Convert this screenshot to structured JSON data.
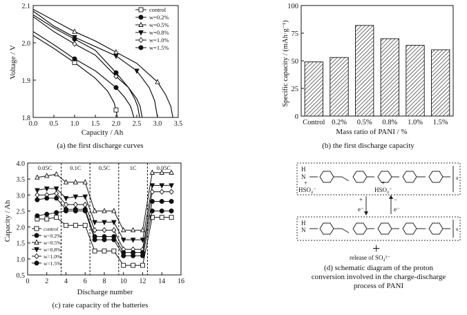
{
  "panel_a": {
    "caption": "(a) the first discharge curves",
    "chart_data": {
      "type": "line",
      "xlabel": "Capacity / Ah",
      "ylabel": "Voltage / V",
      "xlim": [
        0.0,
        3.5
      ],
      "ylim": [
        1.8,
        2.1
      ],
      "xticks": [
        "0.0",
        "0.5",
        "1.0",
        "1.5",
        "2.0",
        "2.5",
        "3.0",
        "3.5"
      ],
      "yticks": [
        "1.8",
        "1.9",
        "2.0",
        "2.1"
      ],
      "legend_position": "top-right",
      "series": [
        {
          "name": "control",
          "marker": "square",
          "x": [
            0,
            0.5,
            1.0,
            1.5,
            1.8,
            1.95,
            2.0,
            2.03
          ],
          "y": [
            2.02,
            1.985,
            1.947,
            1.905,
            1.87,
            1.84,
            1.82,
            1.8
          ]
        },
        {
          "name": "w=0.2%",
          "marker": "circle",
          "x": [
            0,
            0.5,
            1.0,
            1.5,
            2.0,
            2.2,
            2.35,
            2.43
          ],
          "y": [
            2.03,
            1.995,
            1.957,
            1.925,
            1.88,
            1.855,
            1.83,
            1.8
          ]
        },
        {
          "name": "w=0.5%",
          "marker": "triangle-up",
          "x": [
            0,
            0.5,
            1.0,
            1.5,
            2.0,
            2.5,
            3.0,
            3.2,
            3.32,
            3.37
          ],
          "y": [
            2.09,
            2.06,
            2.03,
            2.005,
            1.975,
            1.945,
            1.895,
            1.86,
            1.83,
            1.8
          ]
        },
        {
          "name": "w=0.8%",
          "marker": "triangle-down",
          "x": [
            0,
            0.5,
            1.0,
            1.5,
            2.0,
            2.5,
            2.8,
            2.93,
            3.0
          ],
          "y": [
            2.085,
            2.045,
            2.015,
            1.99,
            1.965,
            1.925,
            1.88,
            1.845,
            1.8
          ]
        },
        {
          "name": "w=1.0%",
          "marker": "diamond",
          "x": [
            0,
            0.5,
            1.0,
            1.5,
            2.0,
            2.3,
            2.5,
            2.58,
            2.63
          ],
          "y": [
            2.07,
            2.03,
            1.997,
            1.967,
            1.91,
            1.88,
            1.85,
            1.83,
            1.8
          ]
        },
        {
          "name": "w=1.5%",
          "marker": "circle",
          "x": [
            0,
            0.5,
            1.0,
            1.5,
            2.0,
            2.3,
            2.45,
            2.52,
            2.57
          ],
          "y": [
            2.075,
            2.04,
            2.01,
            1.98,
            1.92,
            1.88,
            1.85,
            1.83,
            1.8
          ]
        }
      ]
    }
  },
  "panel_b": {
    "caption": "(b) the first discharge capacity",
    "chart_data": {
      "type": "bar",
      "xlabel": "Mass ratio of PANI / %",
      "ylabel": "Specific capacity / (mAh·g⁻¹)",
      "categories": [
        "Control",
        "0.2%",
        "0.5%",
        "0.8%",
        "1.0%",
        "1.5%"
      ],
      "values": [
        49,
        53,
        82,
        70,
        64,
        60
      ],
      "ylim": [
        0,
        100
      ],
      "yticks": [
        "0",
        "25",
        "50",
        "75",
        "100"
      ],
      "fill": "hatched"
    }
  },
  "panel_c": {
    "caption": "(c) rate capacity of the batteries",
    "chart_data": {
      "type": "line",
      "xlabel": "Discharge number",
      "ylabel": "Capacity / Ah",
      "xlim": [
        0,
        16
      ],
      "ylim": [
        0.5,
        4.0
      ],
      "xticks": [
        "0",
        "2",
        "4",
        "6",
        "8",
        "10",
        "12",
        "14",
        "16"
      ],
      "yticks": [
        "0.5",
        "1.0",
        "1.5",
        "2.0",
        "2.5",
        "3.0",
        "3.5",
        "4.0"
      ],
      "annotations": [
        "0.05C",
        "0.1C",
        "0.5C",
        "1C",
        "0.05C"
      ],
      "dividers_x": [
        3.5,
        6.5,
        9.5,
        12.5
      ],
      "legend_position": "bottom-left",
      "x": [
        1,
        2,
        3,
        4,
        5,
        6,
        7,
        8,
        9,
        10,
        11,
        12,
        13,
        14,
        15
      ],
      "series": [
        {
          "name": "control",
          "marker": "square",
          "values": [
            2.25,
            2.25,
            2.3,
            2.05,
            2.05,
            2.05,
            1.25,
            1.25,
            1.25,
            0.8,
            0.8,
            0.8,
            2.3,
            2.3,
            2.3
          ]
        },
        {
          "name": "w=0.2%",
          "marker": "circle",
          "values": [
            2.35,
            2.4,
            2.45,
            2.5,
            2.5,
            2.5,
            1.6,
            1.6,
            1.6,
            1.1,
            1.1,
            1.1,
            2.5,
            2.5,
            2.5
          ]
        },
        {
          "name": "w=0.5%",
          "marker": "triangle-up",
          "values": [
            3.55,
            3.6,
            3.65,
            3.4,
            3.4,
            3.4,
            2.5,
            2.5,
            2.5,
            1.9,
            1.9,
            1.9,
            3.7,
            3.7,
            3.7
          ]
        },
        {
          "name": "w=0.8%",
          "marker": "triangle-down",
          "values": [
            3.15,
            3.2,
            3.2,
            2.9,
            2.95,
            2.95,
            2.15,
            2.15,
            2.15,
            1.6,
            1.6,
            1.6,
            3.3,
            3.3,
            3.3
          ]
        },
        {
          "name": "w=1.0%",
          "marker": "diamond",
          "values": [
            3.0,
            3.0,
            3.05,
            2.7,
            2.7,
            2.7,
            1.9,
            1.9,
            1.9,
            1.3,
            1.3,
            1.3,
            3.1,
            3.1,
            3.1
          ]
        },
        {
          "name": "w=1.5%",
          "marker": "circle",
          "values": [
            2.85,
            2.9,
            2.9,
            2.55,
            2.55,
            2.55,
            1.7,
            1.7,
            1.7,
            1.2,
            1.2,
            1.2,
            2.8,
            2.8,
            2.8
          ]
        }
      ]
    }
  },
  "panel_d": {
    "caption": "(d) schematic diagram of the proton conversion involved in the charge-discharge process of PANI",
    "caption_lines": [
      "(d) schematic diagram of the proton",
      "conversion involved in the charge-discharge",
      "process of PANI"
    ],
    "labels": {
      "hso4_left": "HSO₄⁻",
      "hso4_mid": "HSO₄⁻",
      "plus_left": "+",
      "plus_mid": "+",
      "h_top": "H",
      "n_top": "N",
      "h_bottom": "H",
      "n_bottom": "N",
      "arrow_left_sign": "+",
      "arrow_left_e": "e⁻",
      "arrow_right_sign": "−",
      "arrow_right_e": "e⁻",
      "n_label": "n",
      "release": "release of SO₄²⁻",
      "plus_big": "+"
    }
  }
}
